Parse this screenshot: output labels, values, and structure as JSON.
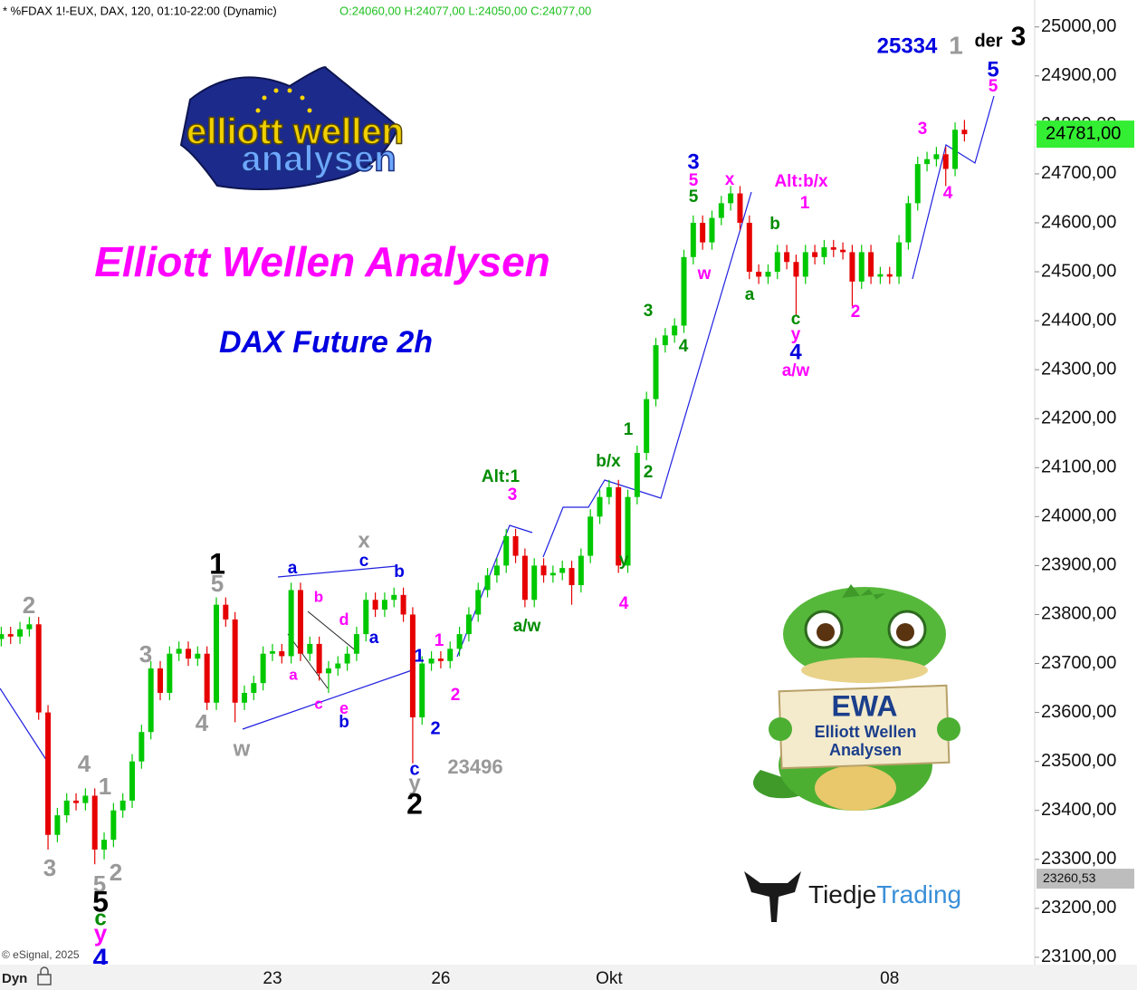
{
  "chart_data": {
    "type": "candlestick",
    "title": "* %FDAX 1!-EUX, DAX, 120, 01:10-22:00 (Dynamic)",
    "ohlc_text": "O:24060,00 H:24077,00 L:24050,00 C:24077,00",
    "headline": "Elliott Wellen Analysen",
    "subtitle": "DAX Future 2h",
    "copyright": "© eSignal, 2025",
    "mode_label": "Dyn",
    "logo": {
      "line1": "elliott wellen",
      "line2": "analysen"
    },
    "mascot": {
      "big": "EWA",
      "line1": "Elliott Wellen",
      "line2": "Analysen"
    },
    "brand": {
      "part1": "Tiedje",
      "part2": "Trading"
    },
    "up_color": "#00c800",
    "down_color": "#e60000",
    "categories": [
      null,
      null,
      null,
      null,
      null,
      null,
      null,
      null,
      null,
      null,
      null,
      null,
      null,
      null,
      null,
      null,
      null,
      null,
      null,
      null,
      null,
      null,
      null,
      null,
      null,
      null,
      null,
      null,
      null,
      "23",
      null,
      null,
      null,
      null,
      null,
      null,
      null,
      null,
      null,
      null,
      null,
      null,
      null,
      null,
      null,
      null,
      null,
      "26",
      null,
      null,
      null,
      null,
      null,
      null,
      null,
      null,
      null,
      null,
      null,
      null,
      null,
      null,
      null,
      null,
      null,
      "Okt",
      null,
      null,
      null,
      null,
      null,
      null,
      null,
      null,
      null,
      null,
      null,
      null,
      null,
      null,
      null,
      null,
      null,
      null,
      null,
      null,
      null,
      null,
      null,
      null,
      null,
      null,
      null,
      null,
      null,
      "08",
      null,
      null,
      null,
      null,
      null,
      null,
      null,
      null
    ],
    "open": [
      23750,
      23760,
      23755,
      23770,
      23780,
      23600,
      23350,
      23390,
      23420,
      23415,
      23430,
      23320,
      23340,
      23400,
      23420,
      23500,
      23560,
      23690,
      23640,
      23720,
      23730,
      23710,
      23720,
      23620,
      23820,
      23790,
      23620,
      23640,
      23660,
      23720,
      23725,
      23715,
      23850,
      23720,
      23740,
      23680,
      23690,
      23700,
      23720,
      23760,
      23830,
      23810,
      23830,
      23840,
      23800,
      23590,
      23700,
      23710,
      23705,
      23730,
      23760,
      23800,
      23850,
      23880,
      23900,
      23960,
      23920,
      23830,
      23900,
      23880,
      23885,
      23895,
      23860,
      23920,
      24000,
      24040,
      24060,
      23900,
      24040,
      24130,
      24240,
      24350,
      24370,
      24390,
      24530,
      24600,
      24560,
      24610,
      24640,
      24660,
      24600,
      24500,
      24490,
      24500,
      24540,
      24520,
      24490,
      24540,
      24530,
      24550,
      24545,
      24540,
      24480,
      24540,
      24490,
      24495,
      24490,
      24560,
      24640,
      24720,
      24730,
      24740,
      24710,
      24790
    ],
    "high": [
      23775,
      23775,
      23785,
      23795,
      23795,
      23615,
      23405,
      23435,
      23435,
      23445,
      23445,
      23355,
      23415,
      23435,
      23515,
      23575,
      23705,
      23705,
      23735,
      23745,
      23745,
      23735,
      23735,
      23835,
      23835,
      23805,
      23655,
      23675,
      23735,
      23740,
      23740,
      23865,
      23865,
      23755,
      23755,
      23705,
      23715,
      23735,
      23775,
      23845,
      23845,
      23845,
      23855,
      23855,
      23815,
      23715,
      23725,
      23725,
      23745,
      23775,
      23815,
      23865,
      23895,
      23915,
      23975,
      23975,
      23935,
      23915,
      23915,
      23900,
      23910,
      23910,
      23935,
      24015,
      24055,
      24075,
      24075,
      24055,
      24145,
      24255,
      24365,
      24385,
      24405,
      24545,
      24615,
      24615,
      24625,
      24655,
      24675,
      24675,
      24615,
      24515,
      24515,
      24555,
      24555,
      24535,
      24555,
      24555,
      24565,
      24565,
      24560,
      24555,
      24555,
      24555,
      24510,
      24510,
      24575,
      24655,
      24735,
      24745,
      24755,
      24755,
      24805,
      24810
    ],
    "low": [
      23735,
      23740,
      23740,
      23755,
      23585,
      23320,
      23335,
      23375,
      23400,
      23400,
      23290,
      23300,
      23325,
      23385,
      23405,
      23485,
      23545,
      23625,
      23625,
      23705,
      23695,
      23695,
      23605,
      23605,
      23775,
      23580,
      23605,
      23625,
      23645,
      23705,
      23700,
      23700,
      23705,
      23705,
      23665,
      23640,
      23675,
      23685,
      23705,
      23745,
      23795,
      23795,
      23815,
      23785,
      23496,
      23575,
      23685,
      23690,
      23690,
      23715,
      23745,
      23785,
      23835,
      23865,
      23885,
      23905,
      23815,
      23815,
      23865,
      23865,
      23870,
      23820,
      23845,
      23905,
      23985,
      24025,
      23885,
      23885,
      24025,
      24115,
      24225,
      24335,
      24355,
      24375,
      24515,
      24545,
      24545,
      24595,
      24625,
      24585,
      24485,
      24475,
      24475,
      24485,
      24505,
      24410,
      24475,
      24515,
      24515,
      24530,
      24525,
      24430,
      24465,
      24475,
      24475,
      24475,
      24475,
      24545,
      24625,
      24705,
      24715,
      24675,
      24695,
      24766
    ],
    "close": [
      23760,
      23755,
      23770,
      23780,
      23600,
      23350,
      23390,
      23420,
      23415,
      23430,
      23320,
      23340,
      23400,
      23420,
      23500,
      23560,
      23690,
      23640,
      23720,
      23730,
      23710,
      23720,
      23620,
      23820,
      23790,
      23620,
      23640,
      23660,
      23720,
      23725,
      23715,
      23850,
      23720,
      23740,
      23680,
      23690,
      23700,
      23720,
      23760,
      23830,
      23810,
      23830,
      23840,
      23800,
      23590,
      23700,
      23710,
      23705,
      23730,
      23760,
      23800,
      23850,
      23880,
      23900,
      23960,
      23920,
      23830,
      23900,
      23880,
      23885,
      23895,
      23860,
      23920,
      24000,
      24040,
      24060,
      23900,
      24040,
      24130,
      24240,
      24350,
      24370,
      24390,
      24530,
      24600,
      24560,
      24610,
      24640,
      24660,
      24600,
      24500,
      24490,
      24500,
      24540,
      24520,
      24490,
      24540,
      24530,
      24550,
      24545,
      24540,
      24480,
      24540,
      24490,
      24495,
      24490,
      24560,
      24640,
      24720,
      24730,
      24740,
      24710,
      24790,
      24781
    ],
    "ylim": [
      23085,
      25055
    ],
    "yticks": [
      {
        "value": 23100,
        "label": "23100,00"
      },
      {
        "value": 23200,
        "label": "23200,00"
      },
      {
        "value": 23300,
        "label": "23300,00"
      },
      {
        "value": 23400,
        "label": "23400,00"
      },
      {
        "value": 23500,
        "label": "23500,00"
      },
      {
        "value": 23600,
        "label": "23600,00"
      },
      {
        "value": 23700,
        "label": "23700,00"
      },
      {
        "value": 23800,
        "label": "23800,00"
      },
      {
        "value": 23900,
        "label": "23900,00"
      },
      {
        "value": 24000,
        "label": "24000,00"
      },
      {
        "value": 24100,
        "label": "24100,00"
      },
      {
        "value": 24200,
        "label": "24200,00"
      },
      {
        "value": 24300,
        "label": "24300,00"
      },
      {
        "value": 24400,
        "label": "24400,00"
      },
      {
        "value": 24500,
        "label": "24500,00"
      },
      {
        "value": 24600,
        "label": "24600,00"
      },
      {
        "value": 24700,
        "label": "24700,00"
      },
      {
        "value": 24800,
        "label": "24800,00"
      },
      {
        "value": 24900,
        "label": "24900,00"
      },
      {
        "value": 25000,
        "label": "25000,00"
      }
    ],
    "last_price": {
      "value": 24781,
      "label": "24781,00",
      "color": "#33ee33"
    },
    "marker_price": {
      "value": 23260.53,
      "label": "23260,53",
      "color": "#bdbdbd"
    },
    "annotations": [
      {
        "text": "2",
        "color": "#999999"
      },
      {
        "text": "3",
        "color": "#999999"
      },
      {
        "text": "4",
        "color": "#999999"
      },
      {
        "text": "4",
        "color": "#999999"
      },
      {
        "text": "1",
        "color": "#999999"
      },
      {
        "text": "3",
        "color": "#999999"
      },
      {
        "text": "5",
        "color": "#999999"
      },
      {
        "text": "2",
        "color": "#999999"
      },
      {
        "text": "5",
        "color": "#000000"
      },
      {
        "text": "c",
        "color": "#008c00"
      },
      {
        "text": "y",
        "color": "#ff00ff"
      },
      {
        "text": "4",
        "color": "#0000e0"
      },
      {
        "text": "1",
        "color": "#000000"
      },
      {
        "text": "5",
        "color": "#999999"
      },
      {
        "text": "w",
        "color": "#999999"
      },
      {
        "text": "a",
        "color": "#0000e0"
      },
      {
        "text": "b",
        "color": "#ff00ff"
      },
      {
        "text": "d",
        "color": "#ff00ff"
      },
      {
        "text": "a",
        "color": "#ff00ff"
      },
      {
        "text": "c",
        "color": "#ff00ff"
      },
      {
        "text": "e",
        "color": "#ff00ff"
      },
      {
        "text": "b",
        "color": "#0000e0"
      },
      {
        "text": "a",
        "color": "#0000e0"
      },
      {
        "text": "x",
        "color": "#999999"
      },
      {
        "text": "c",
        "color": "#0000e0"
      },
      {
        "text": "b",
        "color": "#0000e0"
      },
      {
        "text": "1",
        "color": "#0000e0"
      },
      {
        "text": "1",
        "color": "#ff00ff"
      },
      {
        "text": "2",
        "color": "#ff00ff"
      },
      {
        "text": "2",
        "color": "#0000e0"
      },
      {
        "text": "c",
        "color": "#0000e0"
      },
      {
        "text": "y",
        "color": "#999999"
      },
      {
        "text": "2",
        "color": "#000000"
      },
      {
        "text": "23496",
        "color": "#999999"
      },
      {
        "text": "Alt:1",
        "color": "#008c00"
      },
      {
        "text": "3",
        "color": "#ff00ff"
      },
      {
        "text": "a/w",
        "color": "#008c00"
      },
      {
        "text": "y",
        "color": "#008c00"
      },
      {
        "text": "4",
        "color": "#ff00ff"
      },
      {
        "text": "b/x",
        "color": "#008c00"
      },
      {
        "text": "1",
        "color": "#008c00"
      },
      {
        "text": "2",
        "color": "#008c00"
      },
      {
        "text": "3",
        "color": "#008c00"
      },
      {
        "text": "4",
        "color": "#008c00"
      },
      {
        "text": "3",
        "color": "#0000e0"
      },
      {
        "text": "5",
        "color": "#ff00ff"
      },
      {
        "text": "5",
        "color": "#008c00"
      },
      {
        "text": "w",
        "color": "#ff00ff"
      },
      {
        "text": "x",
        "color": "#ff00ff"
      },
      {
        "text": "a",
        "color": "#008c00"
      },
      {
        "text": "b",
        "color": "#008c00"
      },
      {
        "text": "Alt:b/x",
        "color": "#ff00ff"
      },
      {
        "text": "1",
        "color": "#ff00ff"
      },
      {
        "text": "c",
        "color": "#008c00"
      },
      {
        "text": "y",
        "color": "#ff00ff"
      },
      {
        "text": "4",
        "color": "#0000e0"
      },
      {
        "text": "a/w",
        "color": "#ff00ff"
      },
      {
        "text": "2",
        "color": "#ff00ff"
      },
      {
        "text": "3",
        "color": "#ff00ff"
      },
      {
        "text": "4",
        "color": "#ff00ff"
      },
      {
        "text": "5",
        "color": "#0000e0"
      },
      {
        "text": "5",
        "color": "#ff00ff"
      },
      {
        "text": "25334",
        "color": "#0000e0"
      },
      {
        "text": "1",
        "color": "#999999"
      },
      {
        "text": "der",
        "color": "#000000"
      },
      {
        "text": "3",
        "color": "#000000"
      }
    ]
  }
}
